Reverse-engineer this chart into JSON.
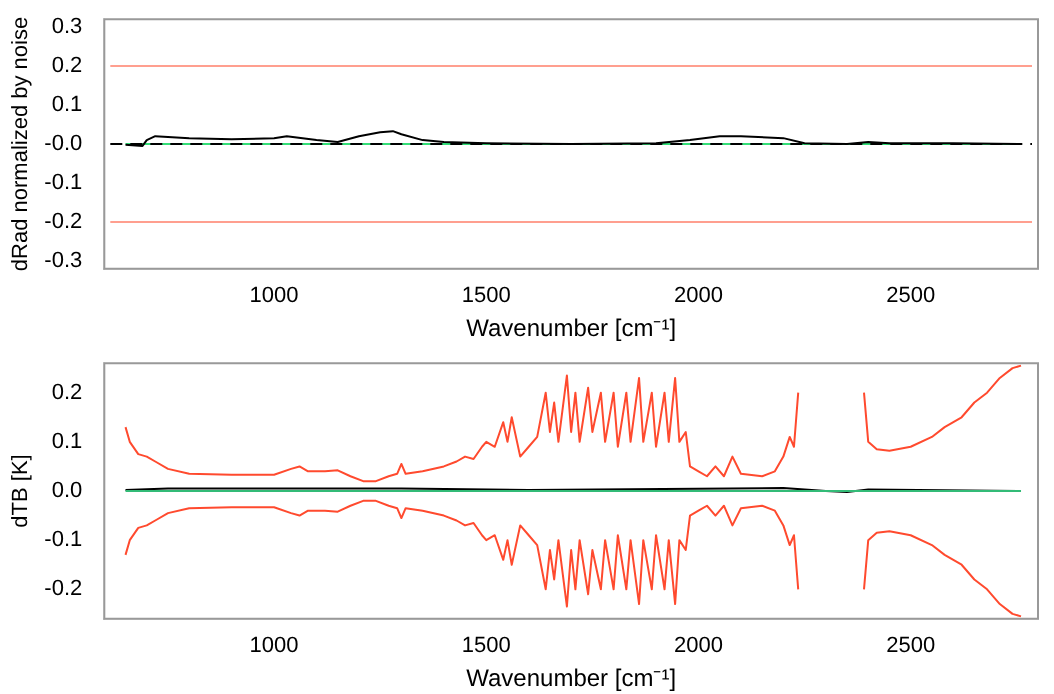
{
  "chart_data": [
    {
      "type": "line",
      "ylabel": "dRad normalized by noise",
      "xlabel": "Wavenumber [cm⁻¹]",
      "xlim": [
        600,
        2800
      ],
      "xticks": [
        1000,
        1500,
        2000,
        2500
      ],
      "ylim": [
        -0.32,
        0.32
      ],
      "yticks": [
        -0.3,
        -0.2,
        -0.1,
        {
          "value": 0,
          "label": "-0.0"
        },
        0.1,
        0.2,
        0.3
      ],
      "grid": false,
      "legend": false,
      "marker": "none",
      "series": [
        {
          "color": "#000000",
          "x": [
            650,
            690,
            700,
            720,
            800,
            900,
            1000,
            1030,
            1100,
            1150,
            1200,
            1250,
            1280,
            1300,
            1350,
            1400,
            1500,
            1700,
            1900,
            1980,
            2050,
            2100,
            2200,
            2250,
            2350,
            2400,
            2450,
            2600,
            2760
          ],
          "values": [
            -0.002,
            -0.005,
            0.01,
            0.02,
            0.015,
            0.012,
            0.015,
            0.02,
            0.01,
            0.005,
            0.02,
            0.03,
            0.033,
            0.025,
            0.01,
            0.005,
            0.002,
            0,
            0.002,
            0.01,
            0.02,
            0.02,
            0.015,
            0.002,
            0,
            0.005,
            0.002,
            0.002,
            0
          ]
        },
        {
          "color": "#33dd77",
          "x": [
            650,
            2760
          ],
          "values": [
            0,
            0
          ]
        }
      ],
      "ref_lines": [
        {
          "axis": "y",
          "value": 0.2,
          "color": "#ff9f8f"
        },
        {
          "axis": "y",
          "value": -0.2,
          "color": "#ff9f8f"
        },
        {
          "axis": "y",
          "value": 0,
          "color": "#000000",
          "line_style": "dashed"
        }
      ]
    },
    {
      "type": "line",
      "ylabel": "dTB [K]",
      "xlabel": "Wavenumber [cm⁻¹]",
      "xlim": [
        600,
        2800
      ],
      "xticks": [
        1000,
        1500,
        2000,
        2500
      ],
      "ylim": [
        -0.26,
        0.26
      ],
      "yticks": [
        -0.2,
        -0.1,
        {
          "value": 0,
          "label": "0.0"
        },
        0.1,
        0.2
      ],
      "grid": false,
      "legend": false,
      "marker": "none",
      "series": [
        {
          "color": "#ff4a2e",
          "x": [
            650,
            660,
            680,
            700,
            720,
            750,
            800,
            900,
            1000,
            1040,
            1060,
            1080,
            1120,
            1150,
            1180,
            1210,
            1240,
            1270,
            1290,
            1300,
            1310,
            1350,
            1400,
            1430,
            1450,
            1470,
            1490,
            1500,
            1520,
            1540,
            1550,
            1560,
            1580,
            1600,
            1620,
            1640,
            1650,
            1660,
            1670,
            1690,
            1700,
            1710,
            1720,
            1740,
            1750,
            1770,
            1780,
            1800,
            1810,
            1830,
            1840,
            1860,
            1870,
            1890,
            1900,
            1920,
            1930,
            1945,
            1955,
            1970,
            1980,
            2000,
            2020,
            2040,
            2060,
            2080,
            2100,
            2150,
            2180,
            2200,
            2215,
            2225,
            2235,
            2240,
            2390,
            2400,
            2420,
            2450,
            2500,
            2550,
            2580,
            2620,
            2650,
            2680,
            2710,
            2740,
            2760
          ],
          "values": [
            0.13,
            0.1,
            0.075,
            0.07,
            0.06,
            0.045,
            0.035,
            0.033,
            0.033,
            0.045,
            0.05,
            0.04,
            0.04,
            0.042,
            0.03,
            0.02,
            0.02,
            0.03,
            0.035,
            0.055,
            0.035,
            0.04,
            0.05,
            0.06,
            0.07,
            0.065,
            0.09,
            0.1,
            0.09,
            0.14,
            0.1,
            0.15,
            0.07,
            0.09,
            0.11,
            0.2,
            0.12,
            0.18,
            0.1,
            0.235,
            0.12,
            0.2,
            0.1,
            0.21,
            0.12,
            0.2,
            0.1,
            0.2,
            0.09,
            0.2,
            0.1,
            0.23,
            0.1,
            0.2,
            0.09,
            0.2,
            0.1,
            0.23,
            0.1,
            0.12,
            0.05,
            0.04,
            0.03,
            0.05,
            0.03,
            0.07,
            0.035,
            0.03,
            0.04,
            0.07,
            0.11,
            0.09,
            0.2,
            null,
            0.2,
            0.1,
            0.085,
            0.082,
            0.09,
            0.11,
            0.13,
            0.15,
            0.18,
            0.2,
            0.23,
            0.25,
            0.255
          ]
        },
        {
          "color": "#ff4a2e",
          "x": [
            650,
            660,
            680,
            700,
            720,
            750,
            800,
            900,
            1000,
            1040,
            1060,
            1080,
            1120,
            1150,
            1180,
            1210,
            1240,
            1270,
            1290,
            1300,
            1310,
            1350,
            1400,
            1430,
            1450,
            1470,
            1490,
            1500,
            1520,
            1540,
            1550,
            1560,
            1580,
            1600,
            1620,
            1640,
            1650,
            1660,
            1670,
            1690,
            1700,
            1710,
            1720,
            1740,
            1750,
            1770,
            1780,
            1800,
            1810,
            1830,
            1840,
            1860,
            1870,
            1890,
            1900,
            1920,
            1930,
            1945,
            1955,
            1970,
            1980,
            2000,
            2020,
            2040,
            2060,
            2080,
            2100,
            2150,
            2180,
            2200,
            2215,
            2225,
            2235,
            2240,
            2390,
            2400,
            2420,
            2450,
            2500,
            2550,
            2580,
            2620,
            2650,
            2680,
            2710,
            2740,
            2760
          ],
          "values": [
            -0.13,
            -0.1,
            -0.075,
            -0.07,
            -0.06,
            -0.045,
            -0.035,
            -0.033,
            -0.033,
            -0.045,
            -0.05,
            -0.04,
            -0.04,
            -0.042,
            -0.03,
            -0.02,
            -0.02,
            -0.03,
            -0.035,
            -0.055,
            -0.035,
            -0.04,
            -0.05,
            -0.06,
            -0.07,
            -0.065,
            -0.09,
            -0.1,
            -0.09,
            -0.14,
            -0.1,
            -0.15,
            -0.07,
            -0.09,
            -0.11,
            -0.2,
            -0.12,
            -0.18,
            -0.1,
            -0.235,
            -0.12,
            -0.2,
            -0.1,
            -0.21,
            -0.12,
            -0.2,
            -0.1,
            -0.2,
            -0.09,
            -0.2,
            -0.1,
            -0.23,
            -0.1,
            -0.2,
            -0.09,
            -0.2,
            -0.1,
            -0.23,
            -0.1,
            -0.12,
            -0.05,
            -0.04,
            -0.03,
            -0.05,
            -0.03,
            -0.07,
            -0.035,
            -0.03,
            -0.04,
            -0.07,
            -0.11,
            -0.09,
            -0.2,
            null,
            -0.2,
            -0.1,
            -0.085,
            -0.082,
            -0.09,
            -0.11,
            -0.13,
            -0.15,
            -0.18,
            -0.2,
            -0.23,
            -0.25,
            -0.255
          ]
        },
        {
          "color": "#33bb77",
          "x": [
            650,
            2760
          ],
          "values": [
            0,
            0
          ]
        },
        {
          "color": "#000000",
          "x": [
            650,
            750,
            1050,
            1300,
            1600,
            2200,
            2300,
            2350,
            2400,
            2760
          ],
          "values": [
            0.002,
            0.005,
            0.005,
            0.005,
            0.002,
            0.006,
            0,
            -0.002,
            0.003,
            0
          ]
        }
      ]
    }
  ]
}
